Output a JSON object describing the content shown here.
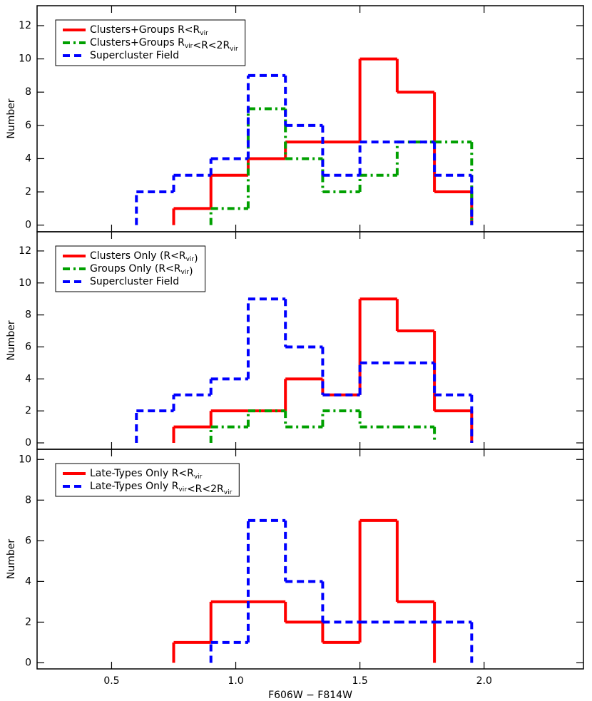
{
  "chart_data": [
    {
      "type": "histogram",
      "ylabel": "Number",
      "bins": [
        0.6,
        0.75,
        0.9,
        1.05,
        1.2,
        1.35,
        1.5,
        1.65,
        1.8,
        1.95
      ],
      "xlim": [
        0.2,
        2.4
      ],
      "xticks": [
        0.5,
        {
          "value": 1,
          "label": "1.0"
        },
        1.5,
        {
          "value": 2,
          "label": "2.0"
        }
      ],
      "ylim": [
        -0.4,
        13.2
      ],
      "yticks": [
        0,
        2,
        4,
        6,
        8,
        10,
        12
      ],
      "legend": "upper left",
      "series": [
        {
          "name": "Clusters+Groups R<Rvir",
          "color": "#ff0000",
          "linestyle": "solid",
          "values": [
            null,
            1,
            3,
            4,
            5,
            5,
            10,
            8,
            2
          ]
        },
        {
          "name": "Clusters+Groups Rvir<R<2Rvir",
          "color": "#00a000",
          "linestyle": "dashdot",
          "values": [
            null,
            null,
            1,
            7,
            4,
            2,
            3,
            5,
            5
          ]
        },
        {
          "name": "Supercluster Field",
          "color": "#0000ff",
          "linestyle": "dashed",
          "values": [
            2,
            3,
            4,
            9,
            6,
            3,
            5,
            5,
            3
          ]
        }
      ]
    },
    {
      "type": "histogram",
      "ylabel": "Number",
      "bins": [
        0.6,
        0.75,
        0.9,
        1.05,
        1.2,
        1.35,
        1.5,
        1.65,
        1.8,
        1.95
      ],
      "xlim": [
        0.2,
        2.4
      ],
      "xticks": [
        0.5,
        {
          "value": 1,
          "label": "1.0"
        },
        1.5,
        {
          "value": 2,
          "label": "2.0"
        }
      ],
      "ylim": [
        -0.4,
        13.2
      ],
      "yticks": [
        0,
        2,
        4,
        6,
        8,
        10,
        12
      ],
      "legend": "upper left",
      "series": [
        {
          "name": "Clusters Only (R<Rvir)",
          "color": "#ff0000",
          "linestyle": "solid",
          "values": [
            null,
            1,
            2,
            2,
            4,
            3,
            9,
            7,
            2
          ]
        },
        {
          "name": "Groups Only (R<Rvir)",
          "color": "#00a000",
          "linestyle": "dashdot",
          "values": [
            null,
            null,
            1,
            2,
            1,
            2,
            1,
            1,
            null
          ]
        },
        {
          "name": "Supercluster Field",
          "color": "#0000ff",
          "linestyle": "dashed",
          "values": [
            2,
            3,
            4,
            9,
            6,
            3,
            5,
            5,
            3
          ]
        }
      ]
    },
    {
      "type": "histogram",
      "ylabel": "Number",
      "xlabel": "F606W − F814W",
      "bins": [
        0.6,
        0.75,
        0.9,
        1.05,
        1.2,
        1.35,
        1.5,
        1.65,
        1.8,
        1.95
      ],
      "xlim": [
        0.2,
        2.4
      ],
      "xticks": [
        0.5,
        {
          "value": 1,
          "label": "1.0"
        },
        1.5,
        {
          "value": 2,
          "label": "2.0"
        }
      ],
      "ylim": [
        -0.3,
        10.5
      ],
      "yticks": [
        0,
        2,
        4,
        6,
        8,
        10
      ],
      "legend": "upper left",
      "series": [
        {
          "name": "Late-Types Only R<Rvir",
          "color": "#ff0000",
          "linestyle": "solid",
          "values": [
            null,
            1,
            3,
            3,
            2,
            1,
            7,
            3,
            null
          ]
        },
        {
          "name": "Late-Types Only Rvir<R<2Rvir",
          "color": "#0000ff",
          "linestyle": "dashed",
          "values": [
            null,
            null,
            1,
            7,
            4,
            2,
            2,
            2,
            2
          ]
        }
      ]
    }
  ]
}
